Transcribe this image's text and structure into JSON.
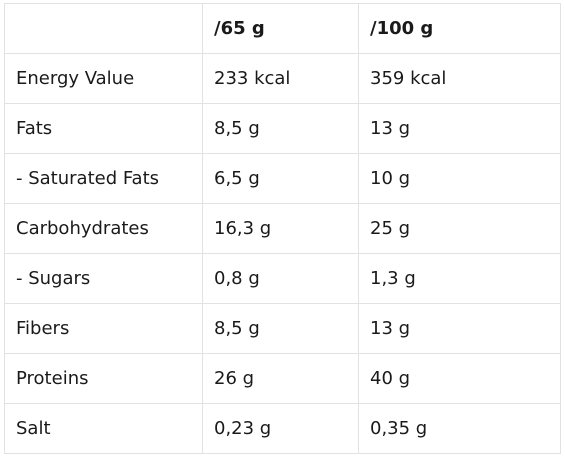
{
  "table": {
    "headers": [
      "",
      "/65 g",
      "/100 g"
    ],
    "rows": [
      [
        "Energy Value",
        "233 kcal",
        "359 kcal"
      ],
      [
        "Fats",
        "8,5 g",
        "13 g"
      ],
      [
        "- Saturated Fats",
        "6,5 g",
        "10 g"
      ],
      [
        "Carbohydrates",
        "16,3 g",
        "25 g"
      ],
      [
        "- Sugars",
        "0,8 g",
        "1,3 g"
      ],
      [
        "Fibers",
        "8,5 g",
        "13 g"
      ],
      [
        "Proteins",
        "26 g",
        "40 g"
      ],
      [
        "Salt",
        "0,23 g",
        "0,35 g"
      ]
    ]
  },
  "colors": {
    "border": "#e2e2e2",
    "text": "#1a1a1a",
    "background": "#ffffff"
  }
}
